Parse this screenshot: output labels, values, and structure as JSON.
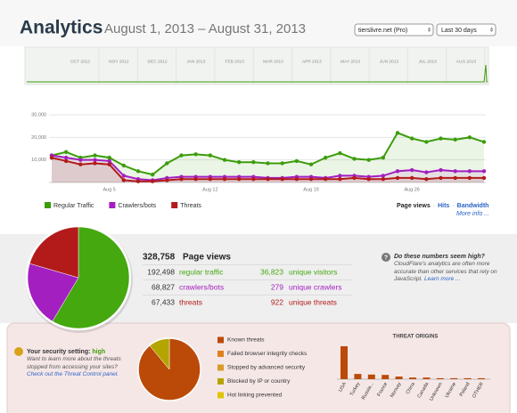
{
  "header": {
    "title": "Analytics",
    "separator": "•",
    "date_range": "August 1, 2013 – August 31, 2013",
    "site": "tierslivre.net (Pro)",
    "period": "Last 30 days"
  },
  "timeline": {
    "months": [
      "OCT 2012",
      "NOV 2012",
      "DEC 2012",
      "JAN 2013",
      "FEB 2013",
      "MAR 2013",
      "APR 2013",
      "MAY 2013",
      "JUN 2013",
      "JUL 2013",
      "AUG 2013"
    ]
  },
  "chart_data": [
    {
      "type": "line",
      "categories": [
        null,
        null,
        null,
        null,
        "Aug 5",
        null,
        null,
        null,
        null,
        null,
        null,
        "Aug 12",
        null,
        null,
        null,
        null,
        null,
        null,
        "Aug 19",
        null,
        null,
        null,
        null,
        null,
        null,
        "Aug 26",
        null,
        null,
        null,
        null,
        null
      ],
      "ylim": [
        0,
        30000
      ],
      "yticks": [
        {
          "value": 10000,
          "label": "10,000"
        },
        {
          "value": 20000,
          "label": "20,000"
        },
        {
          "value": 30000,
          "label": "30,000"
        }
      ],
      "grid": true,
      "legend": "bottom-left",
      "series": [
        {
          "name": "Regular Traffic",
          "color": "#3c9d0a",
          "values": [
            12000,
            13500,
            11000,
            12000,
            11000,
            7500,
            5000,
            3500,
            8500,
            12000,
            12500,
            12000,
            10000,
            9000,
            9000,
            8500,
            8500,
            9500,
            8000,
            11000,
            13000,
            10500,
            10000,
            11000,
            22000,
            19500,
            18000,
            19500,
            19000,
            20000,
            18000
          ]
        },
        {
          "name": "Crawlers/bots",
          "color": "#a31fc0",
          "values": [
            12000,
            11000,
            10000,
            10000,
            9500,
            3000,
            1500,
            1000,
            2000,
            2500,
            2500,
            2500,
            2500,
            2500,
            2500,
            2000,
            2000,
            2500,
            2500,
            2000,
            3000,
            3000,
            2500,
            3000,
            5000,
            5500,
            4500,
            5500,
            5000,
            5000,
            5000
          ]
        },
        {
          "name": "Threats",
          "color": "#b31b1b",
          "values": [
            11000,
            9500,
            8000,
            8500,
            8000,
            1000,
            500,
            500,
            1000,
            1500,
            1500,
            1500,
            1500,
            1500,
            1500,
            1500,
            1500,
            1500,
            1500,
            1500,
            1500,
            2000,
            1500,
            1500,
            2000,
            2000,
            1500,
            2000,
            2000,
            2000,
            2000
          ]
        }
      ]
    },
    {
      "type": "pie",
      "values": [
        192498,
        68827,
        67433
      ],
      "colors": [
        "#44a80e",
        "#a31fc0",
        "#b31b1b"
      ]
    },
    {
      "type": "pie",
      "categories": [
        "Known threats",
        "Failed browser integrity checks",
        "Stopped by advanced security",
        "Blocked by IP or country",
        "Hot linking prevented"
      ],
      "values": [
        89,
        0,
        0,
        11,
        0
      ],
      "colors": [
        "#bb4a08",
        "#e0801c",
        "#d89a2a",
        "#b4a400",
        "#e0c400"
      ]
    },
    {
      "type": "bar",
      "title": "THREAT ORIGINS",
      "categories": [
        "USA",
        "Turkey",
        "Russia...",
        "France",
        "Norway",
        "China",
        "Canada",
        "Unknown",
        "Ukraine",
        "Poland",
        "OTHER"
      ],
      "values": [
        100,
        16,
        14,
        13,
        8,
        5,
        5,
        3,
        3,
        3,
        3
      ],
      "color": "#bb4a08"
    }
  ],
  "metric_tabs": {
    "items": [
      "Page views",
      "Hits",
      "Bandwidth"
    ],
    "separator": "·",
    "more_info": "More info ..."
  },
  "stats": {
    "total": "328,758",
    "total_label": "Page views",
    "rows": [
      [
        "192,498",
        "regular traffic",
        "36,823",
        "unique visitors"
      ],
      [
        "68,827",
        "crawlers/bots",
        "279",
        "unique crawlers"
      ],
      [
        "67,433",
        "threats",
        "922",
        "unique threats"
      ]
    ]
  },
  "help": {
    "title": "Do these numbers seem high?",
    "body": "CloudFlare's analytics are often more accurate than other services that rely on JavaScript.",
    "link": "Learn more ..."
  },
  "security": {
    "label": "Your security setting:",
    "level": "high",
    "body": "Want to learn more about the threats stopped from accessing your sites?",
    "link": "Check out the Threat Control panel."
  }
}
